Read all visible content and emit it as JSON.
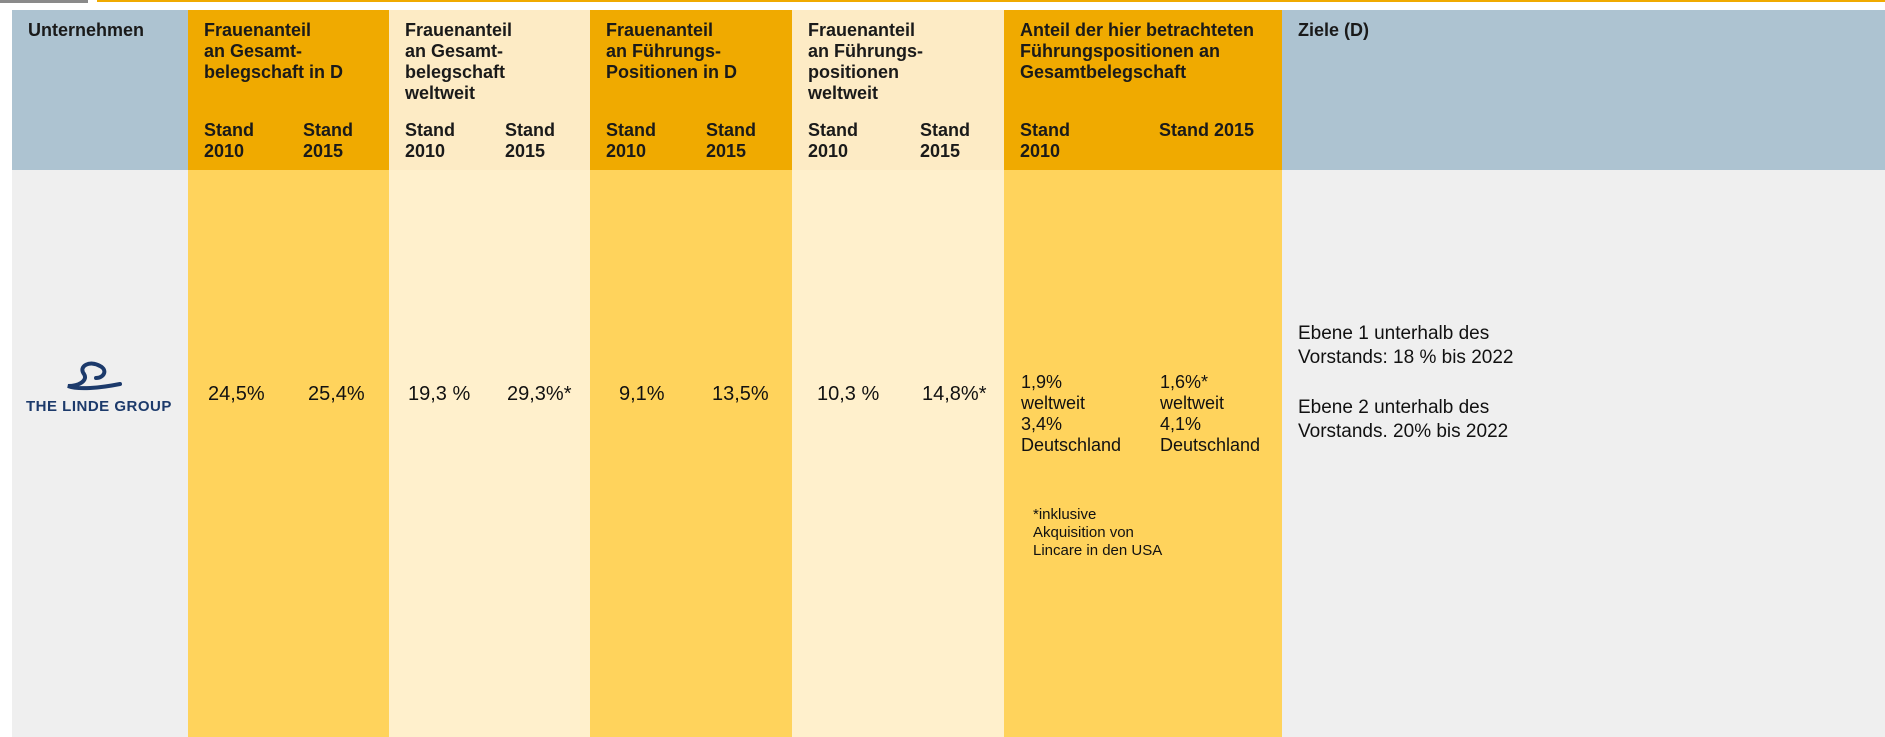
{
  "table": {
    "header": {
      "company": "Unternehmen",
      "groups": [
        {
          "title": "Frauenanteil\nan Gesamt-\nbelegschaft in D",
          "sub": [
            "Stand 2010",
            "Stand 2015"
          ]
        },
        {
          "title": "Frauenanteil\nan Gesamt-\nbelegschaft\nweltweit",
          "sub": [
            "Stand 2010",
            "Stand 2015"
          ]
        },
        {
          "title": "Frauenanteil\nan Führungs-\nPositionen in D",
          "sub": [
            "Stand 2010",
            "Stand 2015"
          ]
        },
        {
          "title": "Frauenanteil\nan Führungs-\npositionen\nweltweit",
          "sub": [
            "Stand 2010",
            "Stand 2015"
          ]
        },
        {
          "title": "Anteil der hier betrachteten\nFührungspositionen an\nGesamtbelegschaft",
          "sub": [
            "Stand 2010",
            "Stand 2015"
          ]
        }
      ],
      "goals": "Ziele (D)"
    },
    "rows": [
      {
        "company": "THE LINDE GROUP",
        "values": [
          "24,5%",
          "25,4%",
          "19,3 %",
          "29,3%*",
          "9,1%",
          "13,5%",
          "10,3 %",
          "14,8%*"
        ],
        "share": [
          [
            "1,9%",
            "weltweit",
            "3,4%",
            "Deutschland"
          ],
          [
            "1,6%*",
            "weltweit",
            "4,1%",
            "Deutschland"
          ]
        ],
        "footnote": [
          "*inklusive",
          "Akquisition von",
          "Lincare in den USA"
        ],
        "goals": [
          "Ebene 1 unterhalb des Vorstands: 18 % bis 2022",
          "Ebene 2 unterhalb des Vorstands. 20% bis 2022"
        ]
      }
    ]
  }
}
